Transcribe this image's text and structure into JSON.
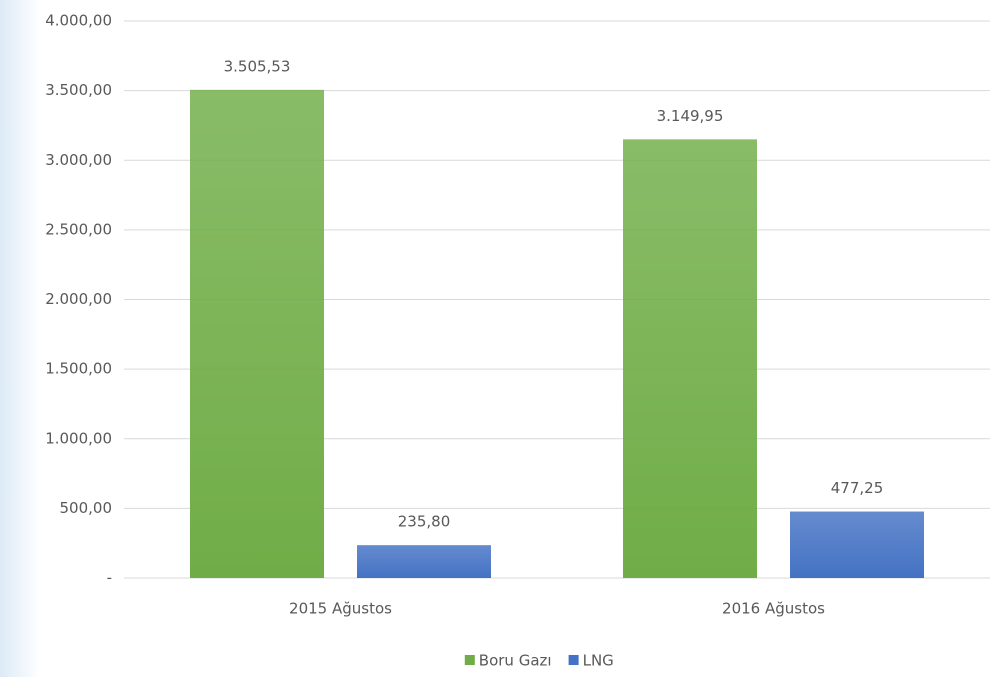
{
  "chart_data": {
    "type": "bar",
    "categories": [
      "2015 Ağustos",
      "2016 Ağustos"
    ],
    "series": [
      {
        "name": "Boru Gazı",
        "color": "#70ad47",
        "values": [
          3505.53,
          3149.95
        ],
        "value_labels": [
          "3.505,53",
          "3.149,95"
        ]
      },
      {
        "name": "LNG",
        "color": "#4472c4",
        "values": [
          235.8,
          477.25
        ],
        "value_labels": [
          "235,80",
          "477,25"
        ]
      }
    ],
    "ylim": [
      0,
      4000
    ],
    "yticks": [
      {
        "value": 0,
        "label": "-"
      },
      {
        "value": 500,
        "label": "500,00"
      },
      {
        "value": 1000,
        "label": "1.000,00"
      },
      {
        "value": 1500,
        "label": "1.500,00"
      },
      {
        "value": 2000,
        "label": "2.000,00"
      },
      {
        "value": 2500,
        "label": "2.500,00"
      },
      {
        "value": 3000,
        "label": "3.000,00"
      },
      {
        "value": 3500,
        "label": "3.500,00"
      },
      {
        "value": 4000,
        "label": "4.000,00"
      }
    ],
    "grid": true,
    "legend": "bottom"
  }
}
